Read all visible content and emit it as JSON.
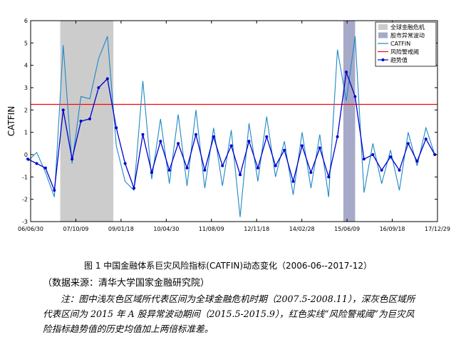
{
  "chart_data": {
    "type": "line",
    "ylabel": "CATFIN",
    "ylim": [
      -3,
      6
    ],
    "yticks": [
      -3,
      -2,
      -1,
      0,
      1,
      2,
      3,
      4,
      5,
      6
    ],
    "xlim": [
      "2006-06-30",
      "2017-12-29"
    ],
    "xtick_labels": [
      "06/06/30",
      "07/10/09",
      "09/01/18",
      "10/04/30",
      "11/08/09",
      "12/11/18",
      "14/02/28",
      "15/06/09",
      "16/09/18",
      "17/12/29"
    ],
    "grid": false,
    "legend_position": "top-right",
    "shaded_regions": [
      {
        "label": "全球金融危机",
        "start": "2007-05",
        "end": "2008-11",
        "color": "#cccccc"
      },
      {
        "label": "股市异常波动",
        "start": "2015-05",
        "end": "2015-09",
        "color": "#a7a9c8"
      }
    ],
    "threshold": {
      "label": "风险警戒阈",
      "value": 2.25,
      "color": "#ff0000"
    },
    "series": [
      {
        "name": "CATFIN",
        "color": "#1e88c8",
        "x": [
          "2006-06",
          "2006-09",
          "2006-12",
          "2007-03",
          "2007-06",
          "2007-09",
          "2007-12",
          "2008-03",
          "2008-06",
          "2008-09",
          "2008-12",
          "2009-03",
          "2009-06",
          "2009-09",
          "2009-12",
          "2010-03",
          "2010-06",
          "2010-09",
          "2010-12",
          "2011-03",
          "2011-06",
          "2011-09",
          "2011-12",
          "2012-03",
          "2012-06",
          "2012-09",
          "2012-12",
          "2013-03",
          "2013-06",
          "2013-09",
          "2013-12",
          "2014-03",
          "2014-06",
          "2014-09",
          "2014-12",
          "2015-03",
          "2015-06",
          "2015-09",
          "2015-12",
          "2016-03",
          "2016-06",
          "2016-09",
          "2016-12",
          "2017-03",
          "2017-06",
          "2017-09",
          "2017-12"
        ],
        "values": [
          -0.3,
          0.1,
          -0.8,
          -1.9,
          4.9,
          -0.4,
          2.6,
          2.5,
          4.3,
          5.3,
          0.4,
          -1.2,
          -1.6,
          3.3,
          -1.1,
          1.6,
          -1.3,
          1.8,
          -1.4,
          2.0,
          -1.5,
          1.2,
          -1.4,
          1.1,
          -2.8,
          1.4,
          -1.2,
          1.7,
          -1.0,
          0.6,
          -1.8,
          1.0,
          -1.5,
          0.9,
          -1.9,
          4.7,
          2.4,
          5.3,
          -1.7,
          0.5,
          -1.3,
          0.2,
          -1.6,
          1.0,
          -0.5,
          1.2,
          0.0
        ]
      },
      {
        "name": "趋势值",
        "color": "#0000cc",
        "x": [
          "2006-06",
          "2006-09",
          "2006-12",
          "2007-03",
          "2007-06",
          "2007-09",
          "2007-12",
          "2008-03",
          "2008-06",
          "2008-09",
          "2008-12",
          "2009-03",
          "2009-06",
          "2009-09",
          "2009-12",
          "2010-03",
          "2010-06",
          "2010-09",
          "2010-12",
          "2011-03",
          "2011-06",
          "2011-09",
          "2011-12",
          "2012-03",
          "2012-06",
          "2012-09",
          "2012-12",
          "2013-03",
          "2013-06",
          "2013-09",
          "2013-12",
          "2014-03",
          "2014-06",
          "2014-09",
          "2014-12",
          "2015-03",
          "2015-06",
          "2015-09",
          "2015-12",
          "2016-03",
          "2016-06",
          "2016-09",
          "2016-12",
          "2017-03",
          "2017-06",
          "2017-09",
          "2017-12"
        ],
        "values": [
          -0.2,
          -0.4,
          -0.6,
          -1.6,
          2.0,
          -0.2,
          1.5,
          1.6,
          3.0,
          3.4,
          1.2,
          -0.4,
          -1.5,
          0.9,
          -0.8,
          0.6,
          -0.7,
          0.5,
          -0.6,
          0.9,
          -0.7,
          0.8,
          -0.5,
          0.4,
          -0.9,
          0.6,
          -0.6,
          0.8,
          -0.5,
          0.2,
          -1.2,
          0.4,
          -0.8,
          0.3,
          -1.0,
          0.8,
          3.7,
          2.6,
          -0.2,
          0.0,
          -0.7,
          -0.1,
          -0.7,
          0.5,
          -0.3,
          0.7,
          0.0
        ]
      }
    ]
  },
  "legend": {
    "items": [
      {
        "label": "全球金融危机",
        "kind": "patch",
        "color": "#cccccc"
      },
      {
        "label": "股市异常波动",
        "kind": "patch",
        "color": "#a7a9c8"
      },
      {
        "label": "CATFIN",
        "kind": "line",
        "color": "#1e88c8"
      },
      {
        "label": "风险警戒阈",
        "kind": "line",
        "color": "#ff0000"
      },
      {
        "label": "趋势值",
        "kind": "marker-line",
        "color": "#0000cc"
      }
    ]
  },
  "caption": "图 1 中国金融体系巨灾风险指标(CATFIN)动态变化（2006-06--2017-12）",
  "source": "（数据来源：清华大学国家金融研究院）",
  "note": "注：图中浅灰色区域所代表区间为全球金融危机时期（2007.5-2008.11），深灰色区域所代表区间为 2015 年 A 股异常波动期间（2015.5-2015.9），红色实线“风险警戒阈”为巨灾风险指标趋势值的历史均值加上两倍标准差。"
}
